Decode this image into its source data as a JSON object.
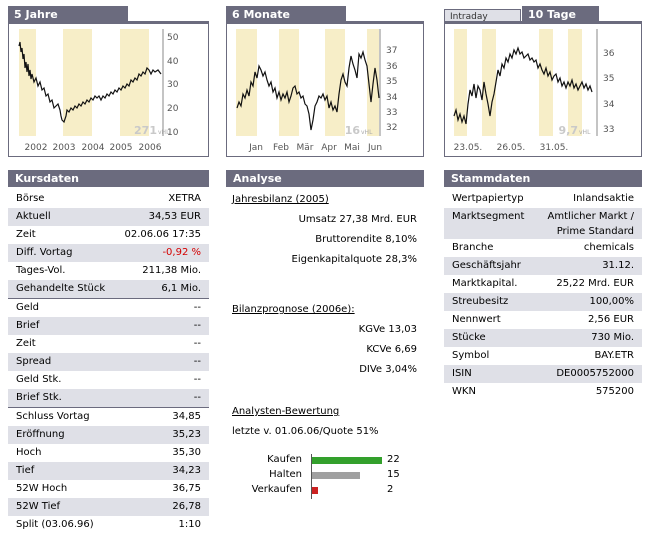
{
  "charts": {
    "five_years": {
      "title": "5 Jahre",
      "y_ticks": [
        "50",
        "40",
        "30",
        "20",
        "10"
      ],
      "x_ticks": [
        "2002",
        "2003",
        "2004",
        "2005",
        "2006"
      ],
      "watermark": "271",
      "watermark_sub": "vHL"
    },
    "six_months": {
      "title": "6 Monate",
      "y_ticks": [
        "37",
        "36",
        "35",
        "34",
        "33",
        "32"
      ],
      "x_ticks": [
        "Jan",
        "Feb",
        "Mär",
        "Apr",
        "Mai",
        "Jun"
      ],
      "watermark": "16",
      "watermark_sub": "vHL"
    },
    "ten_days": {
      "tab_inactive": "Intraday",
      "title": "10 Tage",
      "y_ticks": [
        "36",
        "35",
        "34",
        "33"
      ],
      "x_ticks": [
        "23.05.",
        "26.05.",
        "31.05."
      ],
      "watermark": "9,7",
      "watermark_sub": "vHL"
    }
  },
  "kursdaten": {
    "title": "Kursdaten",
    "rows": [
      {
        "label": "Börse",
        "value": "XETRA",
        "shade": false
      },
      {
        "label": "Aktuell",
        "value": "34,53 EUR",
        "shade": true
      },
      {
        "label": "Zeit",
        "value": "02.06.06  17:35",
        "shade": false
      },
      {
        "label": "Diff. Vortag",
        "value": "-0,92 %",
        "shade": true,
        "red": true
      },
      {
        "label": "Tages-Vol.",
        "value": "211,38 Mio.",
        "shade": false
      },
      {
        "label": "Gehandelte Stück",
        "value": "6,1 Mio.",
        "shade": true
      },
      {
        "label": "Geld",
        "value": "--",
        "shade": false
      },
      {
        "label": "Brief",
        "value": "--",
        "shade": true
      },
      {
        "label": "Zeit",
        "value": "--",
        "shade": false
      },
      {
        "label": "Spread",
        "value": "--",
        "shade": true
      },
      {
        "label": "Geld Stk.",
        "value": "--",
        "shade": false
      },
      {
        "label": "Brief Stk.",
        "value": "--",
        "shade": true
      },
      {
        "label": "Schluss Vortag",
        "value": "34,85",
        "shade": false
      },
      {
        "label": "Eröffnung",
        "value": "35,23",
        "shade": true
      },
      {
        "label": "Hoch",
        "value": "35,30",
        "shade": false
      },
      {
        "label": "Tief",
        "value": "34,23",
        "shade": true
      },
      {
        "label": "52W Hoch",
        "value": "36,75",
        "shade": false
      },
      {
        "label": "52W Tief",
        "value": "26,78",
        "shade": true
      },
      {
        "label": "Split (03.06.96)",
        "value": "1:10",
        "shade": false
      }
    ]
  },
  "analyse": {
    "title": "Analyse",
    "jahresbilanz_title": "Jahresbilanz (2005)",
    "jahresbilanz": [
      "Umsatz 27,38 Mrd. EUR",
      "Bruttorendite 8,10%",
      "Eigenkapitalquote 28,3%"
    ],
    "prognose_title": "Bilanzprognose (2006e):",
    "prognose": [
      "KGVe 13,03",
      "KCVe 6,69",
      "DIVe 3,04%"
    ],
    "bewertung_title": "Analysten-Bewertung",
    "bewertung_sub": "letzte v. 01.06.06/Quote 51%",
    "ratings": [
      {
        "label": "Kaufen",
        "value": "22",
        "count": 22,
        "color": "#33a02c"
      },
      {
        "label": "Halten",
        "value": "15",
        "count": 15,
        "color": "#a0a0a0"
      },
      {
        "label": "Verkaufen",
        "value": "2",
        "count": 2,
        "color": "#cc2222"
      }
    ]
  },
  "stammdaten": {
    "title": "Stammdaten",
    "rows": [
      {
        "label": "Wertpapiertyp",
        "value": "Inlandsaktie",
        "shade": false
      },
      {
        "label": "Marktsegment",
        "value": "Amtlicher Markt / Prime Standard",
        "shade": true
      },
      {
        "label": "Branche",
        "value": "chemicals",
        "shade": false
      },
      {
        "label": "Geschäftsjahr",
        "value": "31.12.",
        "shade": true
      },
      {
        "label": "Marktkapital.",
        "value": "25,22 Mrd. EUR",
        "shade": false
      },
      {
        "label": "Streubesitz",
        "value": "100,00%",
        "shade": true
      },
      {
        "label": "Nennwert",
        "value": "2,56 EUR",
        "shade": false
      },
      {
        "label": "Stücke",
        "value": "730 Mio.",
        "shade": true
      },
      {
        "label": "Symbol",
        "value": "BAY.ETR",
        "shade": false
      },
      {
        "label": "ISIN",
        "value": "DE0005752000",
        "shade": true
      },
      {
        "label": "WKN",
        "value": "575200",
        "shade": false
      }
    ]
  }
}
